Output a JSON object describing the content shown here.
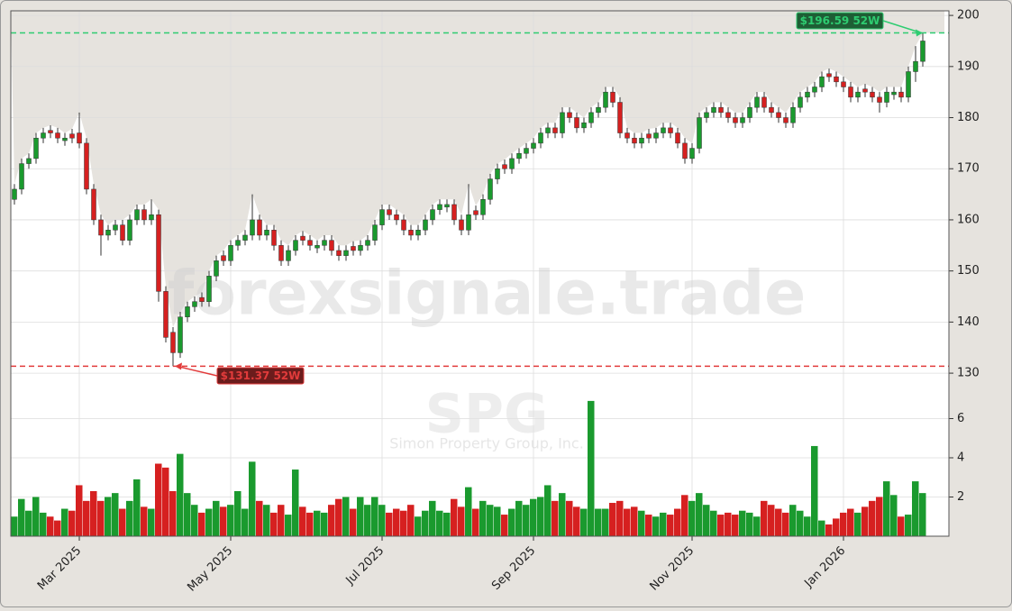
{
  "chart_data": {
    "type": "candlestick",
    "watermark": "forexsignale.trade",
    "symbol": "SPG",
    "company": "Simon Property Group, Inc.",
    "up_color": "#1a9a2e",
    "down_color": "#d62020",
    "grid": true,
    "categories": [
      null,
      null,
      null,
      null,
      null,
      null,
      null,
      null,
      null,
      "Mar 2025",
      null,
      null,
      null,
      null,
      null,
      null,
      null,
      null,
      null,
      null,
      null,
      null,
      null,
      null,
      null,
      null,
      null,
      null,
      null,
      null,
      "May 2025",
      null,
      null,
      null,
      null,
      null,
      null,
      null,
      null,
      null,
      null,
      null,
      null,
      null,
      null,
      null,
      null,
      null,
      null,
      null,
      null,
      "Jul 2025",
      null,
      null,
      null,
      null,
      null,
      null,
      null,
      null,
      null,
      null,
      null,
      null,
      null,
      null,
      null,
      null,
      null,
      null,
      null,
      null,
      "Sep 2025",
      null,
      null,
      null,
      null,
      null,
      null,
      null,
      null,
      null,
      null,
      null,
      null,
      null,
      null,
      null,
      null,
      null,
      null,
      null,
      null,
      null,
      "Nov 2025",
      null,
      null,
      null,
      null,
      null,
      null,
      null,
      null,
      null,
      null,
      null,
      null,
      null,
      null,
      null,
      null,
      null,
      null,
      null,
      null,
      "Jan 2026",
      null,
      null,
      null,
      null,
      null,
      null,
      null,
      null,
      null,
      null,
      null
    ],
    "open": [
      164,
      166,
      171,
      172,
      176,
      177.5,
      177,
      175.5,
      176.8,
      177,
      175,
      166,
      160,
      157,
      158,
      159,
      156,
      160,
      162,
      160,
      161,
      146,
      138,
      134,
      141,
      143,
      144.8,
      144,
      149,
      153,
      152,
      155,
      156,
      157,
      160,
      157,
      158,
      155,
      152,
      154,
      156.8,
      156,
      154.5,
      155,
      156,
      154,
      153,
      154.8,
      154,
      155,
      156,
      159,
      162,
      161,
      160,
      158,
      157,
      158,
      160,
      162,
      162.5,
      163,
      160,
      158,
      161.8,
      161,
      164,
      168,
      170.8,
      170,
      172,
      173,
      174,
      175,
      177,
      178,
      177,
      181,
      180,
      178,
      179,
      181,
      182,
      185,
      183,
      177,
      176,
      175,
      176.8,
      176,
      177,
      178,
      177,
      175,
      172,
      174,
      180,
      181,
      182,
      181,
      180,
      179,
      180,
      182,
      184,
      182,
      181,
      180,
      179,
      182,
      184,
      185,
      186,
      188.6,
      188,
      187,
      186,
      184,
      185.6,
      185,
      184,
      183,
      184.5,
      185,
      184,
      189,
      191
    ],
    "high": [
      167,
      172,
      173,
      177,
      178,
      178.5,
      178,
      177,
      177.8,
      181,
      176,
      167,
      161,
      159,
      160,
      160,
      161,
      163,
      163,
      164,
      162,
      147,
      139,
      142,
      144,
      145,
      145.8,
      150,
      153,
      154,
      156,
      157,
      158,
      165,
      161,
      159,
      159,
      156,
      155,
      157,
      157.8,
      157,
      156,
      157,
      157,
      155,
      155,
      155.8,
      156,
      157,
      160,
      163,
      163,
      162,
      161,
      159,
      159,
      161,
      163,
      164,
      164,
      164,
      161,
      167,
      162.8,
      165,
      169,
      171,
      171.8,
      173,
      174,
      175,
      176,
      178,
      179,
      179,
      182,
      182,
      181,
      180,
      182,
      183,
      186,
      186,
      184,
      178,
      177,
      177,
      177.8,
      178,
      179,
      179,
      178,
      176,
      175,
      181,
      182,
      183,
      183,
      182,
      181,
      181,
      183,
      185,
      185,
      183,
      182,
      181,
      183,
      185,
      186,
      187,
      189,
      189.6,
      189,
      188,
      187,
      186,
      186.6,
      186,
      185,
      186,
      186,
      186,
      190,
      194,
      196.59
    ],
    "low": [
      163,
      165,
      170,
      171,
      175,
      176,
      175,
      174.5,
      175,
      174,
      165,
      159,
      153,
      156,
      157,
      155,
      155,
      159,
      159,
      159,
      144,
      136,
      131.37,
      133,
      140,
      142,
      143,
      143,
      148,
      151,
      151,
      154,
      155,
      156,
      156,
      156,
      154,
      151,
      151,
      153,
      155,
      154,
      153.5,
      154,
      153,
      152,
      152,
      153,
      153,
      154,
      155,
      158,
      160,
      159,
      157,
      156,
      156,
      157,
      159,
      161,
      161.5,
      159,
      157,
      157,
      160,
      160,
      163,
      167,
      169,
      169,
      171,
      172,
      173,
      174,
      176,
      176,
      176,
      179,
      177,
      177,
      178,
      180,
      181,
      182,
      176,
      175,
      174,
      174,
      175,
      175,
      176,
      176,
      174,
      171,
      171,
      173,
      179,
      180,
      180,
      179,
      178,
      178,
      179,
      181,
      181,
      180,
      179,
      178,
      178,
      181,
      183,
      184,
      185,
      187,
      186,
      185,
      183,
      183,
      184,
      183,
      181,
      182,
      183.5,
      183,
      183,
      187,
      190
    ],
    "close": [
      166,
      171,
      172,
      176,
      177,
      177,
      176,
      176,
      176,
      175,
      166,
      160,
      157,
      158,
      159,
      156,
      160,
      162,
      160,
      161,
      146,
      137,
      134,
      141,
      143,
      144,
      144,
      149,
      152,
      152,
      155,
      156,
      157,
      160,
      157,
      158,
      155,
      152,
      154,
      156,
      156,
      155,
      155,
      156,
      154,
      153,
      154,
      154,
      155,
      156,
      159,
      162,
      161,
      160,
      158,
      157,
      158,
      160,
      162,
      163,
      163,
      160,
      158,
      161,
      161,
      164,
      168,
      170,
      170,
      172,
      173,
      174,
      175,
      177,
      178,
      177,
      181,
      180,
      178,
      179,
      181,
      182,
      185,
      183,
      177,
      176,
      175,
      176,
      176,
      177,
      178,
      177,
      175,
      172,
      174,
      180,
      181,
      182,
      181,
      180,
      179,
      180,
      182,
      184,
      182,
      181,
      180,
      179,
      182,
      184,
      185,
      186,
      188,
      188,
      187,
      186,
      184,
      185,
      185,
      184,
      183,
      185,
      185,
      184,
      189,
      191,
      195
    ],
    "volume": [
      1.0,
      1.9,
      1.3,
      2.0,
      1.2,
      1.0,
      0.8,
      1.4,
      1.3,
      2.6,
      1.8,
      2.3,
      1.8,
      2.0,
      2.2,
      1.4,
      1.8,
      2.9,
      1.5,
      1.4,
      3.7,
      3.5,
      2.3,
      4.2,
      2.2,
      1.6,
      1.2,
      1.4,
      1.8,
      1.5,
      1.6,
      2.3,
      1.4,
      3.8,
      1.8,
      1.6,
      1.2,
      1.6,
      1.1,
      3.4,
      1.5,
      1.2,
      1.3,
      1.2,
      1.6,
      1.9,
      2.0,
      1.4,
      2.0,
      1.6,
      2.0,
      1.6,
      1.2,
      1.4,
      1.3,
      1.6,
      1.0,
      1.3,
      1.8,
      1.3,
      1.2,
      1.9,
      1.5,
      2.5,
      1.4,
      1.8,
      1.6,
      1.5,
      1.1,
      1.4,
      1.8,
      1.6,
      1.9,
      2.0,
      2.6,
      1.8,
      2.2,
      1.8,
      1.5,
      1.4,
      6.9,
      1.4,
      1.4,
      1.7,
      1.8,
      1.4,
      1.5,
      1.3,
      1.1,
      1.0,
      1.2,
      1.1,
      1.4,
      2.1,
      1.8,
      2.2,
      1.6,
      1.3,
      1.1,
      1.2,
      1.1,
      1.3,
      1.2,
      1.0,
      1.8,
      1.6,
      1.4,
      1.2,
      1.6,
      1.3,
      1.0,
      4.6,
      0.8,
      0.6,
      0.9,
      1.2,
      1.4,
      1.2,
      1.5,
      1.8,
      2.0,
      2.8,
      2.1,
      1.0,
      1.1,
      2.8,
      2.2
    ],
    "ylim": [
      98.1,
      200.9
    ],
    "yticks": [
      130,
      140,
      150,
      160,
      170,
      180,
      190,
      200
    ],
    "y2lim": [
      0,
      26.8
    ],
    "y2ticks": [
      2,
      4,
      6
    ],
    "annotations": [
      {
        "text": "$196.59 52W",
        "value": 196.59,
        "color": "#2ecc71",
        "box": "#1e5e35"
      },
      {
        "text": "$131.37 52W",
        "value": 131.37,
        "color": "#e23b3b",
        "box": "#6b1c1c"
      }
    ]
  }
}
